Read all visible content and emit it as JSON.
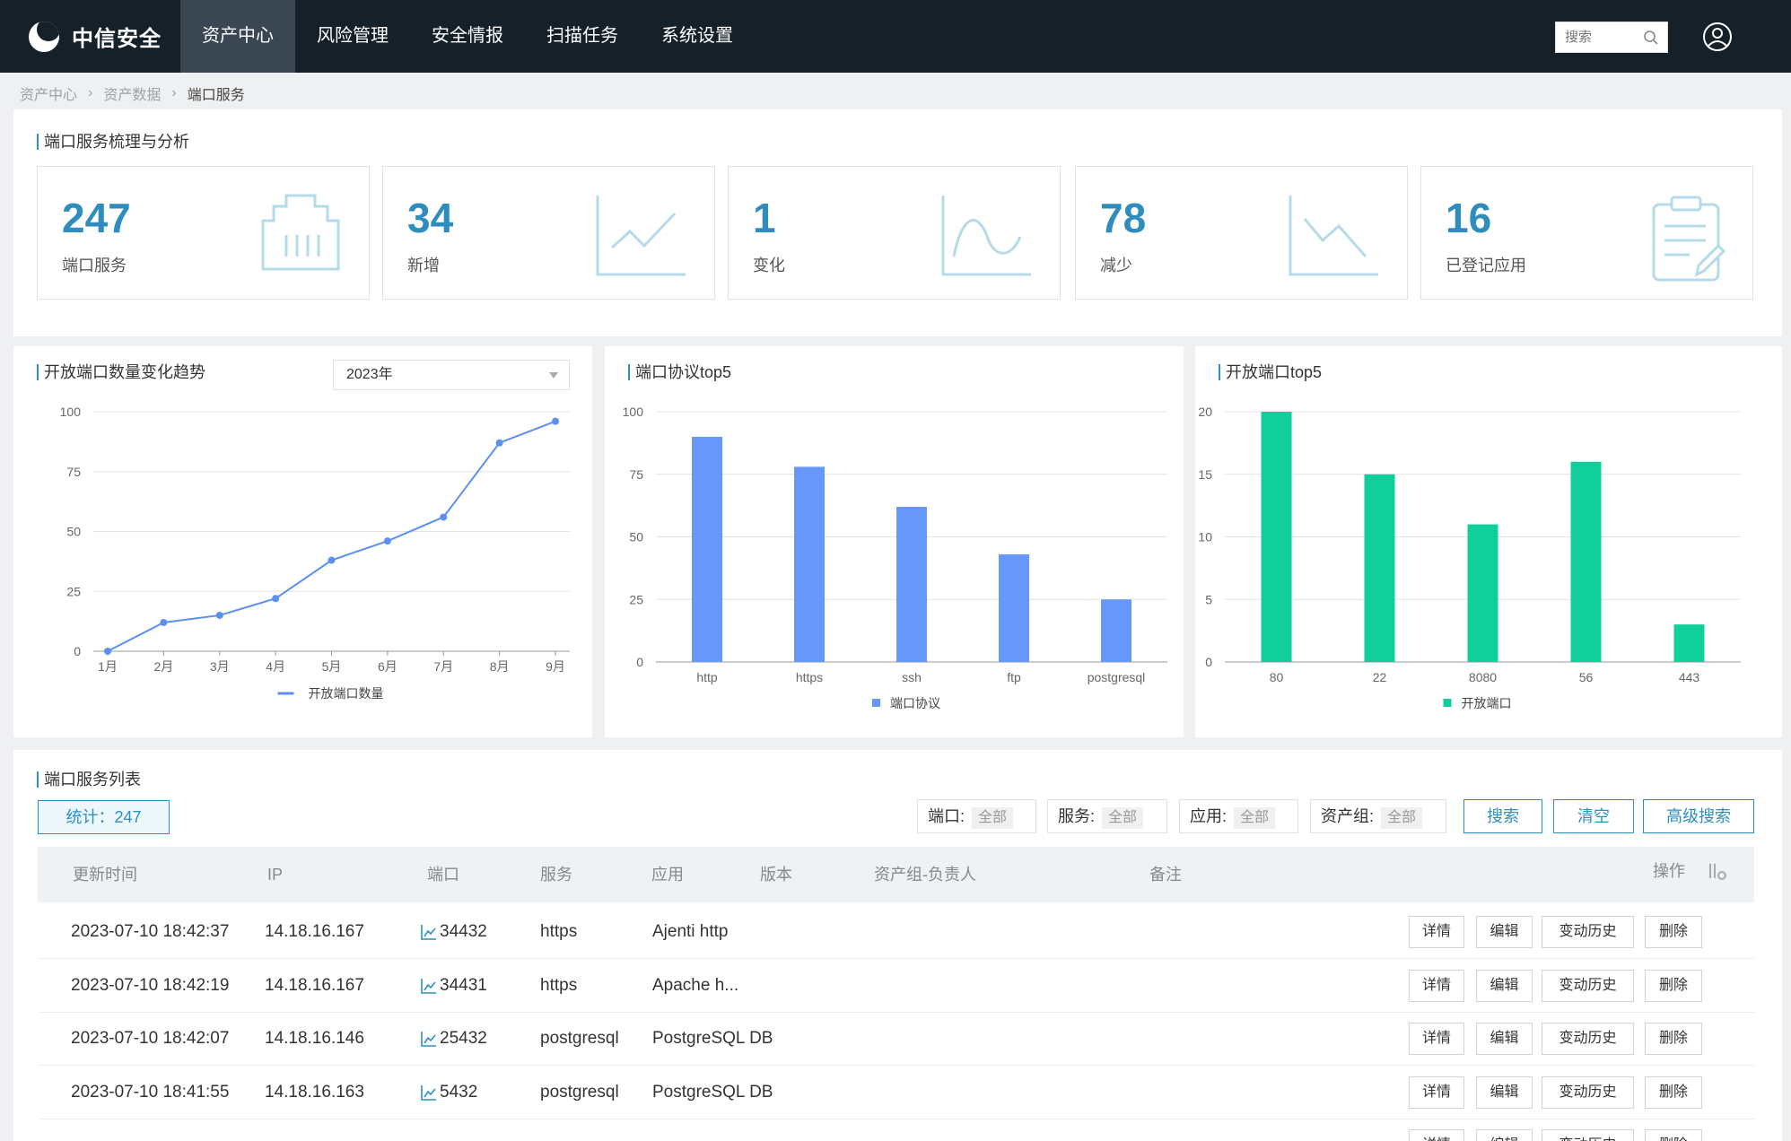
{
  "app": {
    "brand": "中信安全",
    "nav": [
      "资产中心",
      "风险管理",
      "安全情报",
      "扫描任务",
      "系统设置"
    ],
    "search_placeholder": "搜索"
  },
  "breadcrumb": [
    "资产中心",
    "资产数据",
    "端口服务"
  ],
  "summary": {
    "title": "端口服务梳理与分析",
    "cards": [
      {
        "value": "247",
        "label": "端口服务",
        "icon": "network-port-icon"
      },
      {
        "value": "34",
        "label": "新增",
        "icon": "line-up-icon"
      },
      {
        "value": "1",
        "label": "变化",
        "icon": "wave-icon"
      },
      {
        "value": "78",
        "label": "减少",
        "icon": "line-down-icon"
      },
      {
        "value": "16",
        "label": "已登记应用",
        "icon": "clipboard-edit-icon"
      }
    ]
  },
  "charts": {
    "trend": {
      "title": "开放端口数量变化趋势",
      "year": "2023年"
    },
    "protocol": {
      "title": "端口协议top5"
    },
    "ports": {
      "title": "开放端口top5"
    }
  },
  "chart_data": [
    {
      "type": "line",
      "title": "开放端口数量变化趋势",
      "categories": [
        "1月",
        "2月",
        "3月",
        "4月",
        "5月",
        "6月",
        "7月",
        "8月",
        "9月"
      ],
      "series": [
        {
          "name": "开放端口数量",
          "values": [
            0,
            12,
            15,
            22,
            38,
            46,
            56,
            87,
            96
          ]
        }
      ],
      "yticks": [
        "0",
        "25",
        "50",
        "75",
        "100"
      ],
      "ylim": [
        0,
        100
      ],
      "color": "#5b8ff0",
      "grid": true,
      "legend": "bottom"
    },
    {
      "type": "bar",
      "title": "端口协议top5",
      "categories": [
        "http",
        "https",
        "ssh",
        "ftp",
        "postgresql"
      ],
      "series": [
        {
          "name": "端口协议",
          "values": [
            90,
            78,
            62,
            43,
            25
          ]
        }
      ],
      "yticks": [
        "0",
        "25",
        "50",
        "75",
        "100"
      ],
      "ylim": [
        0,
        100
      ],
      "color": "#6797f8",
      "grid": true,
      "legend": "bottom"
    },
    {
      "type": "bar",
      "title": "开放端口top5",
      "categories": [
        "80",
        "22",
        "8080",
        "56",
        "443"
      ],
      "series": [
        {
          "name": "开放端口",
          "values": [
            20,
            15,
            11,
            16,
            3
          ]
        }
      ],
      "yticks": [
        "0",
        "5",
        "10",
        "15",
        "20"
      ],
      "ylim": [
        0,
        20
      ],
      "color": "#11cf9a",
      "grid": true,
      "legend": "bottom"
    }
  ],
  "list": {
    "title": "端口服务列表",
    "count_label": "统计：247",
    "filters": [
      {
        "label": "端口:",
        "value": "全部"
      },
      {
        "label": "服务:",
        "value": "全部"
      },
      {
        "label": "应用:",
        "value": "全部"
      },
      {
        "label": "资产组:",
        "value": "全部"
      }
    ],
    "buttons": {
      "search": "搜索",
      "clear": "清空",
      "advanced": "高级搜索"
    },
    "columns": [
      "更新时间",
      "IP",
      "端口",
      "服务",
      "应用",
      "版本",
      "资产组-负责人",
      "备注",
      "操作"
    ],
    "actions": [
      "详情",
      "编辑",
      "变动历史",
      "删除"
    ],
    "rows": [
      {
        "time": "2023-07-10 18:42:37",
        "ip": "14.18.16.167",
        "port": "34432",
        "service": "https",
        "app": "Ajenti http"
      },
      {
        "time": "2023-07-10 18:42:19",
        "ip": "14.18.16.167",
        "port": "34431",
        "service": "https",
        "app": "Apache h..."
      },
      {
        "time": "2023-07-10 18:42:07",
        "ip": "14.18.16.146",
        "port": "25432",
        "service": "postgresql",
        "app": "PostgreSQL DB"
      },
      {
        "time": "2023-07-10 18:41:55",
        "ip": "14.18.16.163",
        "port": "5432",
        "service": "postgresql",
        "app": "PostgreSQL DB"
      }
    ]
  }
}
